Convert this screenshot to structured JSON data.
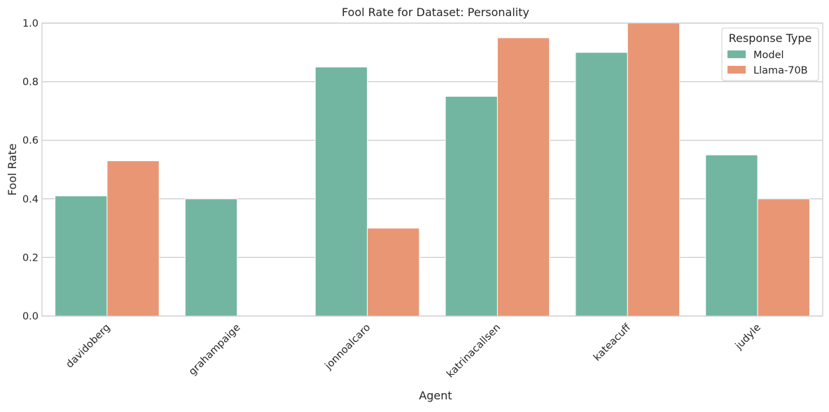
{
  "chart_data": {
    "type": "bar",
    "title": "Fool Rate for Dataset: Personality",
    "xlabel": "Agent",
    "ylabel": "Fool Rate",
    "categories": [
      "davidoberg",
      "grahampaige",
      "jonnoalcaro",
      "katrinacallsen",
      "kateacuff",
      "judyle"
    ],
    "series": [
      {
        "name": "Model",
        "color": "#72b6a1",
        "values": [
          0.41,
          0.4,
          0.85,
          0.75,
          0.9,
          0.55
        ]
      },
      {
        "name": "Llama-70B",
        "color": "#e99675",
        "values": [
          0.53,
          0.0,
          0.3,
          0.95,
          1.0,
          0.4
        ]
      }
    ],
    "ylim": [
      0,
      1.0
    ],
    "yticks": [
      "0.0",
      "0.2",
      "0.4",
      "0.6",
      "0.8",
      "1.0"
    ],
    "grid": true,
    "legend": {
      "title": "Response Type",
      "placement": "top-right"
    }
  }
}
